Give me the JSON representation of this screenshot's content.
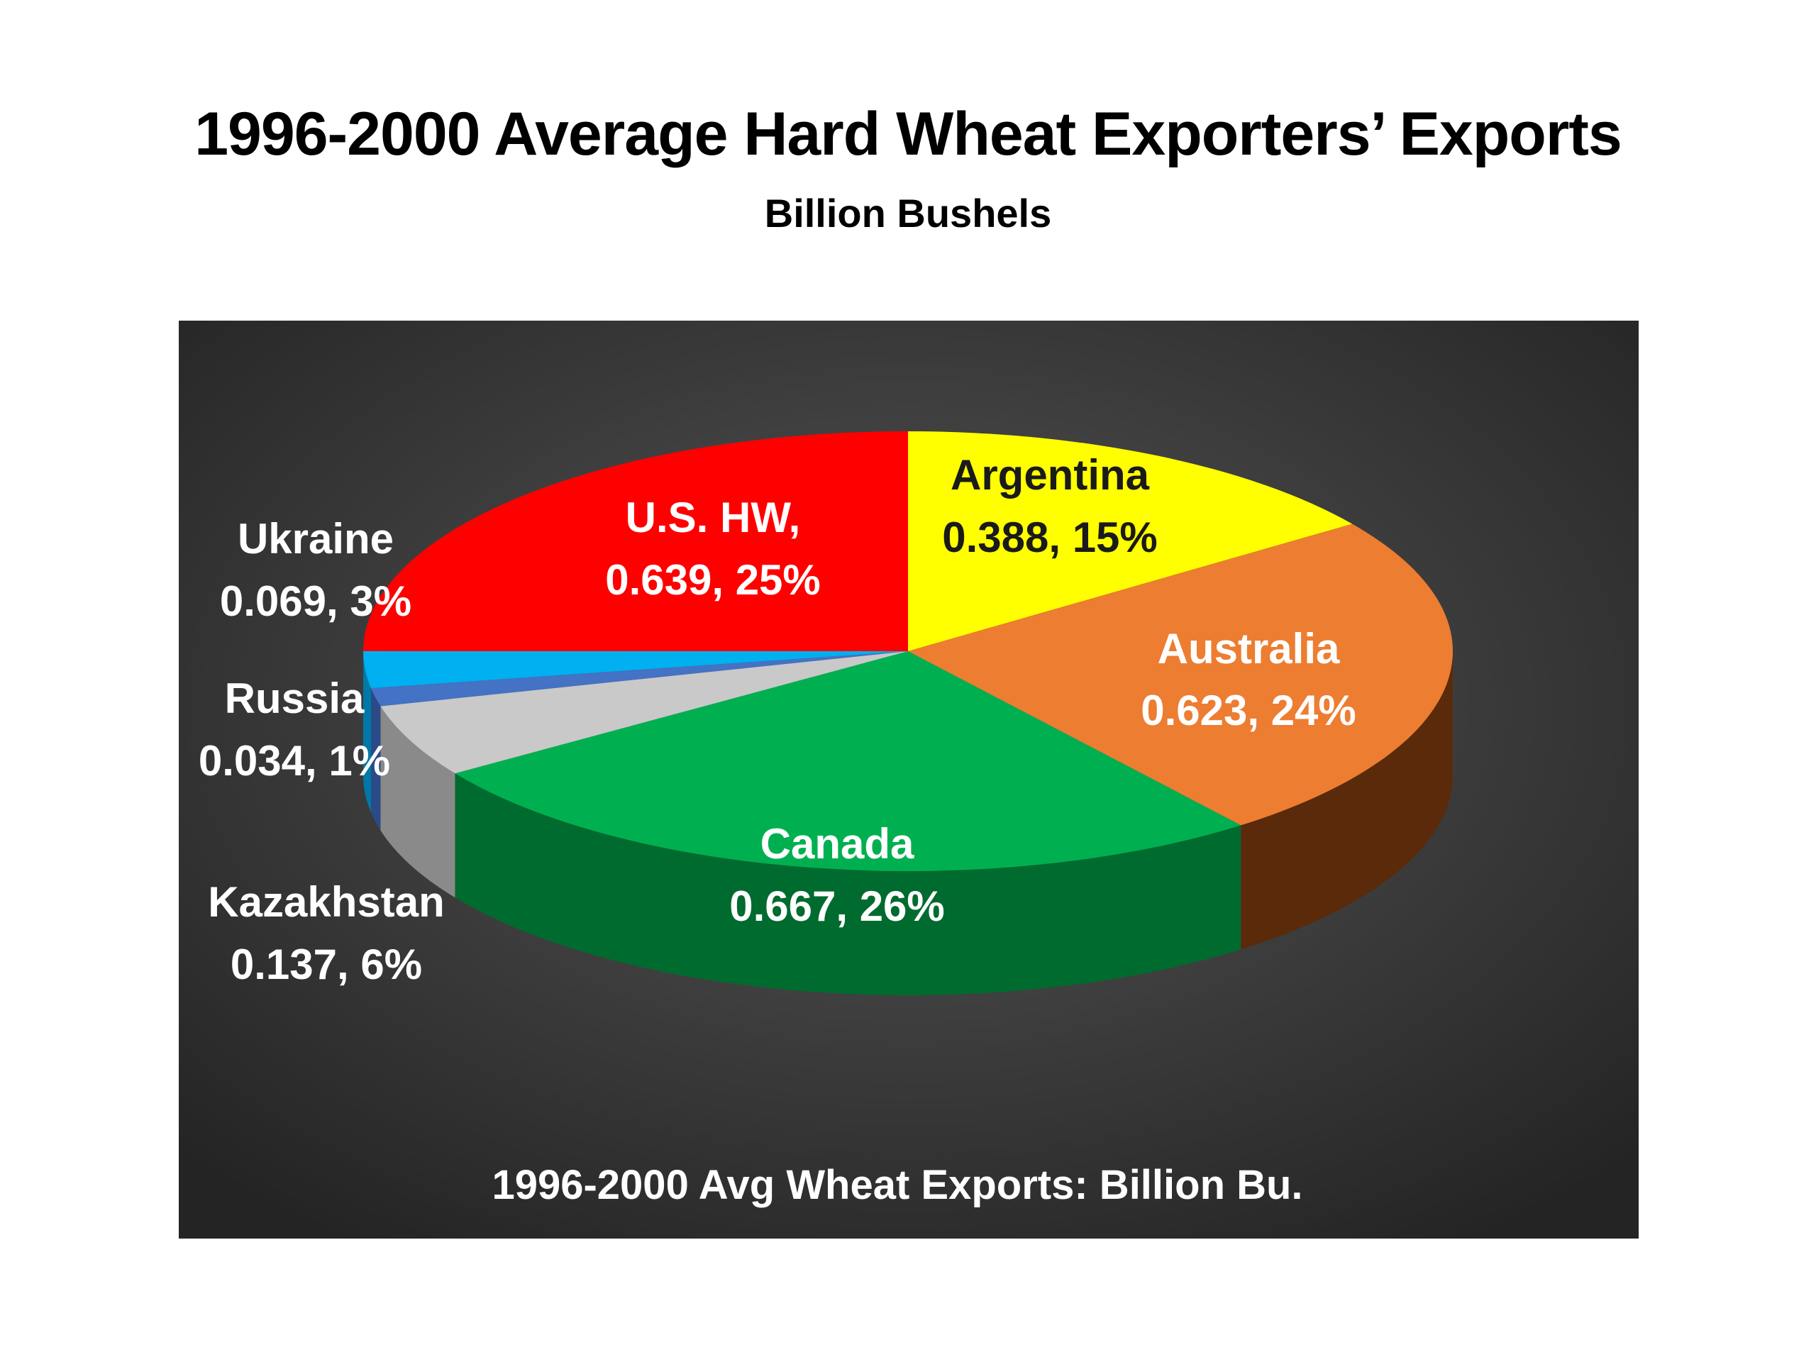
{
  "slide": {
    "title": "1996-2000 Average Hard Wheat Exporters’ Exports",
    "subtitle": "Billion Bushels"
  },
  "chart_data": {
    "type": "pie",
    "style": "3d",
    "caption": "1996-2000 Avg Wheat Exports: Billion Bu.",
    "background": "#2e2e2e",
    "slices": [
      {
        "name": "Argentina",
        "value": 0.388,
        "pct": "15%",
        "label": "Argentina",
        "value_label": "0.388, 15%",
        "color": "#ffff00",
        "side_color": "#b3b300",
        "text_color": "#1a1a1a"
      },
      {
        "name": "Australia",
        "value": 0.623,
        "pct": "24%",
        "label": "Australia",
        "value_label": "0.623, 24%",
        "color": "#ed7d31",
        "side_color": "#5a2a0a",
        "text_color": "#ffffff"
      },
      {
        "name": "Canada",
        "value": 0.667,
        "pct": "26%",
        "label": "Canada",
        "value_label": "0.667, 26%",
        "color": "#00b050",
        "side_color": "#006b2e",
        "text_color": "#ffffff"
      },
      {
        "name": "Kazakhstan",
        "value": 0.137,
        "pct": "6%",
        "label": "Kazakhstan",
        "value_label": "0.137, 6%",
        "color": "#c9c9c9",
        "side_color": "#8a8a8a",
        "text_color": "#ffffff"
      },
      {
        "name": "Russia",
        "value": 0.034,
        "pct": "1%",
        "label": "Russia",
        "value_label": "0.034, 1%",
        "color": "#4472c4",
        "side_color": "#2a4a88",
        "text_color": "#ffffff"
      },
      {
        "name": "Ukraine",
        "value": 0.069,
        "pct": "3%",
        "label": "Ukraine",
        "value_label": "0.069, 3%",
        "color": "#00b0f0",
        "side_color": "#0078a8",
        "text_color": "#ffffff"
      },
      {
        "name": "U.S. HW",
        "value": 0.639,
        "pct": "25%",
        "label": "U.S. HW,",
        "value_label": "0.639, 25%",
        "color": "#ff0000",
        "side_color": "#990000",
        "text_color": "#ffffff"
      }
    ]
  }
}
